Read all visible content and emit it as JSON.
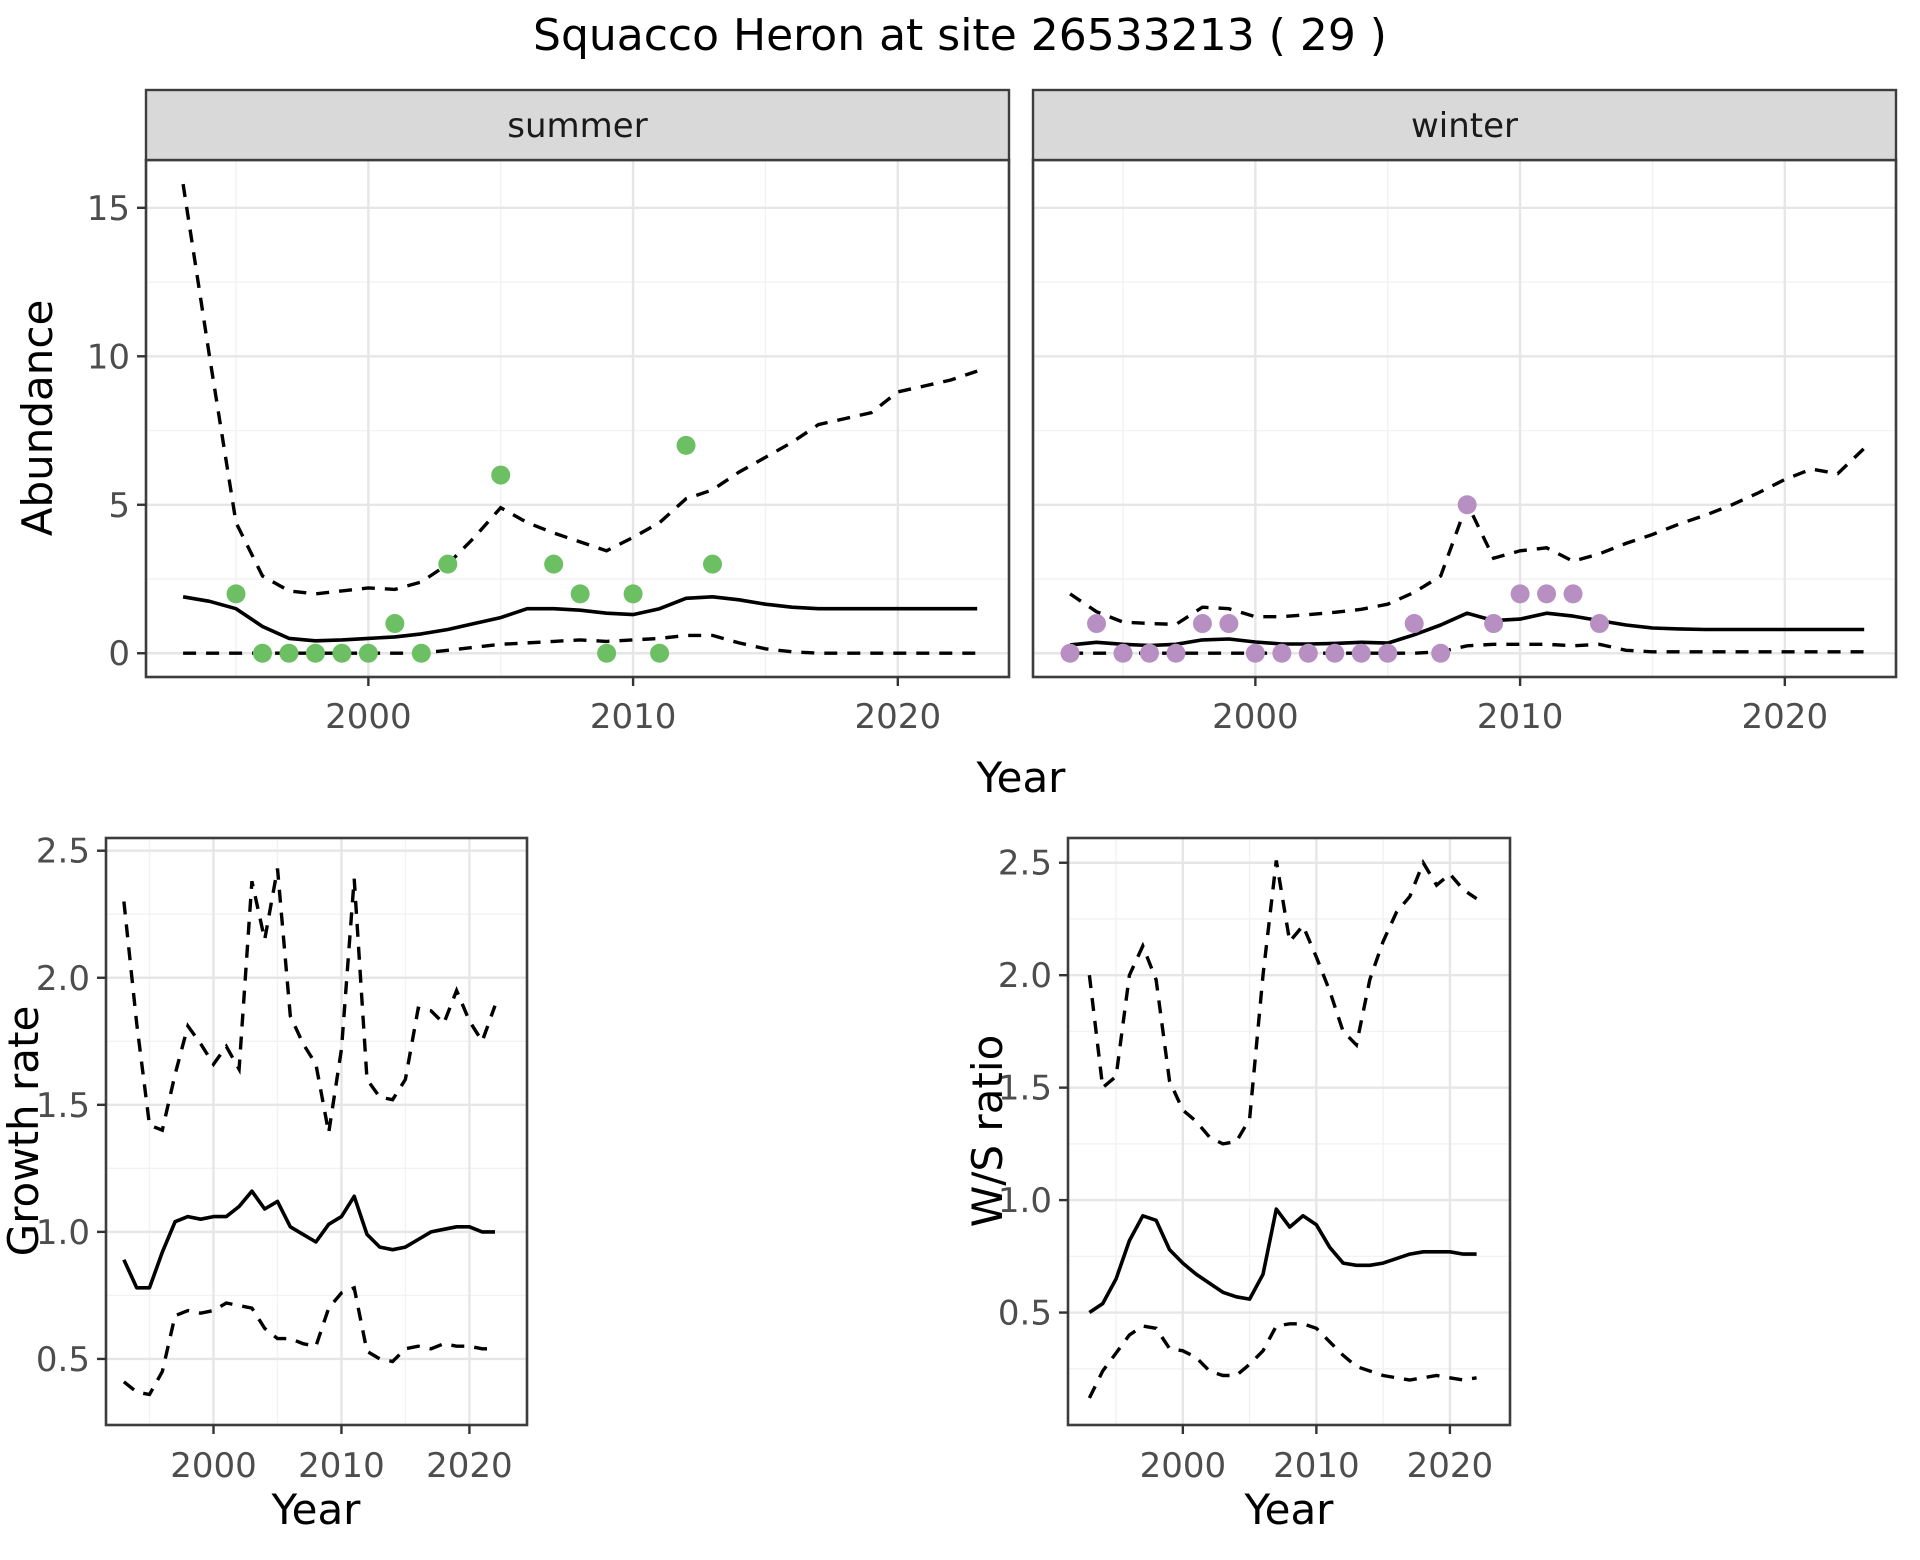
{
  "chart_data": {
    "title": "Squacco Heron at site 26533213 ( 29 )",
    "type": "line",
    "grid": true,
    "legend": "none",
    "line_color": "#000000",
    "ci_dash": [
      13,
      10
    ],
    "charts": [
      {
        "id": "abundance",
        "ylabel": "Abundance",
        "xlabel": "Year",
        "x_ticks": [
          2000,
          2010,
          2020
        ],
        "x_tick_labels": [
          "2000",
          "2010",
          "2020"
        ],
        "x_minor": [
          1995,
          2005,
          2015
        ],
        "y_ticks": [
          0,
          5,
          10,
          15
        ],
        "y_tick_labels": [
          "0",
          "5",
          "10",
          "15"
        ],
        "y_minor": [
          2.5,
          7.5,
          12.5
        ],
        "xlim": [
          1991.6,
          2024.2
        ],
        "ylim": [
          -0.8,
          16.61
        ],
        "years": [
          1993,
          1994,
          1995,
          1996,
          1997,
          1998,
          1999,
          2000,
          2001,
          2002,
          2003,
          2004,
          2005,
          2006,
          2007,
          2008,
          2009,
          2010,
          2011,
          2012,
          2013,
          2014,
          2015,
          2016,
          2017,
          2018,
          2019,
          2020,
          2021,
          2022,
          2023
        ],
        "facets": [
          {
            "label": "summer",
            "point_color": "#6dbf63",
            "observed_points": [
              [
                1995,
                2
              ],
              [
                1996,
                0
              ],
              [
                1997,
                0
              ],
              [
                1998,
                0
              ],
              [
                1999,
                0
              ],
              [
                2000,
                0
              ],
              [
                2001,
                1
              ],
              [
                2002,
                0
              ],
              [
                2003,
                3
              ],
              [
                2005,
                6
              ],
              [
                2007,
                3
              ],
              [
                2008,
                2
              ],
              [
                2009,
                0
              ],
              [
                2010,
                2
              ],
              [
                2011,
                0
              ],
              [
                2012,
                7
              ],
              [
                2013,
                3
              ]
            ],
            "series": {
              "mean": [
                1.9,
                1.75,
                1.5,
                0.9,
                0.5,
                0.42,
                0.45,
                0.5,
                0.55,
                0.65,
                0.8,
                1.0,
                1.2,
                1.5,
                1.5,
                1.45,
                1.35,
                1.3,
                1.5,
                1.85,
                1.9,
                1.8,
                1.65,
                1.55,
                1.5,
                1.5,
                1.5,
                1.5,
                1.5,
                1.5,
                1.5
              ],
              "upper_ci": [
                15.8,
                10.0,
                4.4,
                2.6,
                2.1,
                2.0,
                2.1,
                2.2,
                2.15,
                2.4,
                3.0,
                3.9,
                4.9,
                4.4,
                4.05,
                3.75,
                3.45,
                3.9,
                4.4,
                5.2,
                5.5,
                6.1,
                6.6,
                7.1,
                7.7,
                7.9,
                8.1,
                8.8,
                9.0,
                9.2,
                9.5
              ],
              "lower_ci": [
                0,
                0,
                0,
                0,
                0,
                0,
                0,
                0,
                0,
                0,
                0.1,
                0.2,
                0.3,
                0.35,
                0.4,
                0.45,
                0.4,
                0.45,
                0.5,
                0.6,
                0.6,
                0.35,
                0.15,
                0.05,
                0,
                0,
                0,
                0,
                0,
                0,
                0
              ]
            }
          },
          {
            "label": "winter",
            "point_color": "#b78fc2",
            "observed_points": [
              [
                1993,
                0
              ],
              [
                1994,
                1
              ],
              [
                1995,
                0
              ],
              [
                1996,
                0
              ],
              [
                1997,
                0
              ],
              [
                1998,
                1
              ],
              [
                1999,
                1
              ],
              [
                2000,
                0
              ],
              [
                2001,
                0
              ],
              [
                2002,
                0
              ],
              [
                2003,
                0
              ],
              [
                2004,
                0
              ],
              [
                2005,
                0
              ],
              [
                2006,
                1
              ],
              [
                2007,
                0
              ],
              [
                2008,
                5
              ],
              [
                2009,
                1
              ],
              [
                2010,
                2
              ],
              [
                2011,
                2
              ],
              [
                2012,
                2
              ],
              [
                2013,
                1
              ]
            ],
            "series": {
              "mean": [
                0.28,
                0.37,
                0.3,
                0.26,
                0.3,
                0.45,
                0.48,
                0.38,
                0.31,
                0.31,
                0.33,
                0.37,
                0.34,
                0.62,
                0.95,
                1.35,
                1.1,
                1.15,
                1.35,
                1.25,
                1.1,
                0.95,
                0.85,
                0.82,
                0.8,
                0.8,
                0.8,
                0.8,
                0.8,
                0.8,
                0.8
              ],
              "upper_ci": [
                2.0,
                1.4,
                1.05,
                1.0,
                0.97,
                1.55,
                1.5,
                1.23,
                1.23,
                1.3,
                1.38,
                1.48,
                1.65,
                2.05,
                2.6,
                5.05,
                3.2,
                3.45,
                3.55,
                3.1,
                3.35,
                3.7,
                4.0,
                4.35,
                4.65,
                5.0,
                5.4,
                5.85,
                6.2,
                6.05,
                6.9
              ],
              "lower_ci": [
                0,
                0,
                0,
                0,
                0,
                0,
                0,
                0,
                0,
                0,
                0,
                0,
                0,
                0,
                0.05,
                0.25,
                0.3,
                0.3,
                0.3,
                0.25,
                0.3,
                0.1,
                0.05,
                0.05,
                0.05,
                0.05,
                0.05,
                0.05,
                0.05,
                0.05,
                0.05
              ]
            }
          }
        ]
      },
      {
        "id": "growth_rate",
        "ylabel": "Growth rate",
        "xlabel": "Year",
        "x_ticks": [
          2000,
          2010,
          2020
        ],
        "x_tick_labels": [
          "2000",
          "2010",
          "2020"
        ],
        "x_minor": [
          1995,
          2005,
          2015
        ],
        "y_ticks": [
          0.5,
          1.0,
          1.5,
          2.0,
          2.5
        ],
        "y_tick_labels": [
          "0.5",
          "1.0",
          "1.5",
          "2.0",
          "2.5"
        ],
        "y_minor": [
          0.75,
          1.25,
          1.75,
          2.25
        ],
        "xlim": [
          1991.6,
          2024.5
        ],
        "ylim": [
          0.24,
          2.55
        ],
        "years": [
          1993,
          1994,
          1995,
          1996,
          1997,
          1998,
          1999,
          2000,
          2001,
          2002,
          2003,
          2004,
          2005,
          2006,
          2007,
          2008,
          2009,
          2010,
          2011,
          2012,
          2013,
          2014,
          2015,
          2016,
          2017,
          2018,
          2019,
          2020,
          2021,
          2022
        ],
        "series": {
          "mean": [
            0.89,
            0.78,
            0.78,
            0.92,
            1.04,
            1.06,
            1.05,
            1.06,
            1.06,
            1.1,
            1.16,
            1.09,
            1.12,
            1.02,
            0.99,
            0.96,
            1.03,
            1.06,
            1.14,
            0.99,
            0.94,
            0.93,
            0.94,
            0.97,
            1.0,
            1.01,
            1.02,
            1.02,
            1.0,
            1.0
          ],
          "upper_ci": [
            2.3,
            1.82,
            1.42,
            1.4,
            1.62,
            1.81,
            1.74,
            1.66,
            1.73,
            1.64,
            2.38,
            2.15,
            2.43,
            1.85,
            1.74,
            1.66,
            1.39,
            1.72,
            2.39,
            1.6,
            1.53,
            1.52,
            1.6,
            1.88,
            1.87,
            1.82,
            1.95,
            1.83,
            1.75,
            1.89
          ],
          "lower_ci": [
            0.41,
            0.37,
            0.36,
            0.45,
            0.67,
            0.69,
            0.68,
            0.69,
            0.72,
            0.71,
            0.7,
            0.62,
            0.58,
            0.58,
            0.56,
            0.55,
            0.7,
            0.76,
            0.78,
            0.53,
            0.5,
            0.49,
            0.54,
            0.55,
            0.54,
            0.56,
            0.55,
            0.55,
            0.54,
            0.54
          ]
        }
      },
      {
        "id": "ws_ratio",
        "ylabel": "W/S ratio",
        "xlabel": "Year",
        "x_ticks": [
          2000,
          2010,
          2020
        ],
        "x_tick_labels": [
          "2000",
          "2010",
          "2020"
        ],
        "x_minor": [
          1995,
          2005,
          2015
        ],
        "y_ticks": [
          0.5,
          1.0,
          1.5,
          2.0,
          2.5
        ],
        "y_tick_labels": [
          "0.5",
          "1.0",
          "1.5",
          "2.0",
          "2.5"
        ],
        "y_minor": [
          0.25,
          0.75,
          1.25,
          1.75,
          2.25
        ],
        "xlim": [
          1991.4,
          2024.5
        ],
        "ylim": [
          0.0,
          2.61
        ],
        "years": [
          1993,
          1994,
          1995,
          1996,
          1997,
          1998,
          1999,
          2000,
          2001,
          2002,
          2003,
          2004,
          2005,
          2006,
          2007,
          2008,
          2009,
          2010,
          2011,
          2012,
          2013,
          2014,
          2015,
          2016,
          2017,
          2018,
          2019,
          2020,
          2021,
          2022
        ],
        "series": {
          "mean": [
            0.5,
            0.54,
            0.65,
            0.82,
            0.93,
            0.91,
            0.78,
            0.72,
            0.67,
            0.63,
            0.59,
            0.57,
            0.56,
            0.67,
            0.96,
            0.88,
            0.93,
            0.89,
            0.79,
            0.72,
            0.71,
            0.71,
            0.72,
            0.74,
            0.76,
            0.77,
            0.77,
            0.77,
            0.76,
            0.76
          ],
          "upper_ci": [
            2.0,
            1.5,
            1.55,
            2.0,
            2.13,
            1.98,
            1.53,
            1.4,
            1.35,
            1.28,
            1.25,
            1.26,
            1.36,
            2.0,
            2.51,
            2.15,
            2.22,
            2.08,
            1.93,
            1.75,
            1.69,
            1.98,
            2.15,
            2.28,
            2.35,
            2.5,
            2.4,
            2.45,
            2.38,
            2.34
          ],
          "lower_ci": [
            0.12,
            0.24,
            0.32,
            0.4,
            0.44,
            0.43,
            0.34,
            0.33,
            0.3,
            0.24,
            0.22,
            0.22,
            0.27,
            0.33,
            0.44,
            0.45,
            0.45,
            0.43,
            0.37,
            0.31,
            0.26,
            0.24,
            0.22,
            0.21,
            0.2,
            0.21,
            0.22,
            0.21,
            0.2,
            0.21
          ]
        }
      }
    ],
    "style": {
      "strip_fill": "#d9d9d9",
      "strip_text_color": "#1a1a1a",
      "panel_border_color": "#3d3d3d",
      "grid_major_color": "#e6e6e6",
      "grid_minor_color": "#f2f2f2",
      "tick_color": "#333333",
      "tick_label_color": "#4d4d4d",
      "axis_title_color": "#000000"
    }
  }
}
